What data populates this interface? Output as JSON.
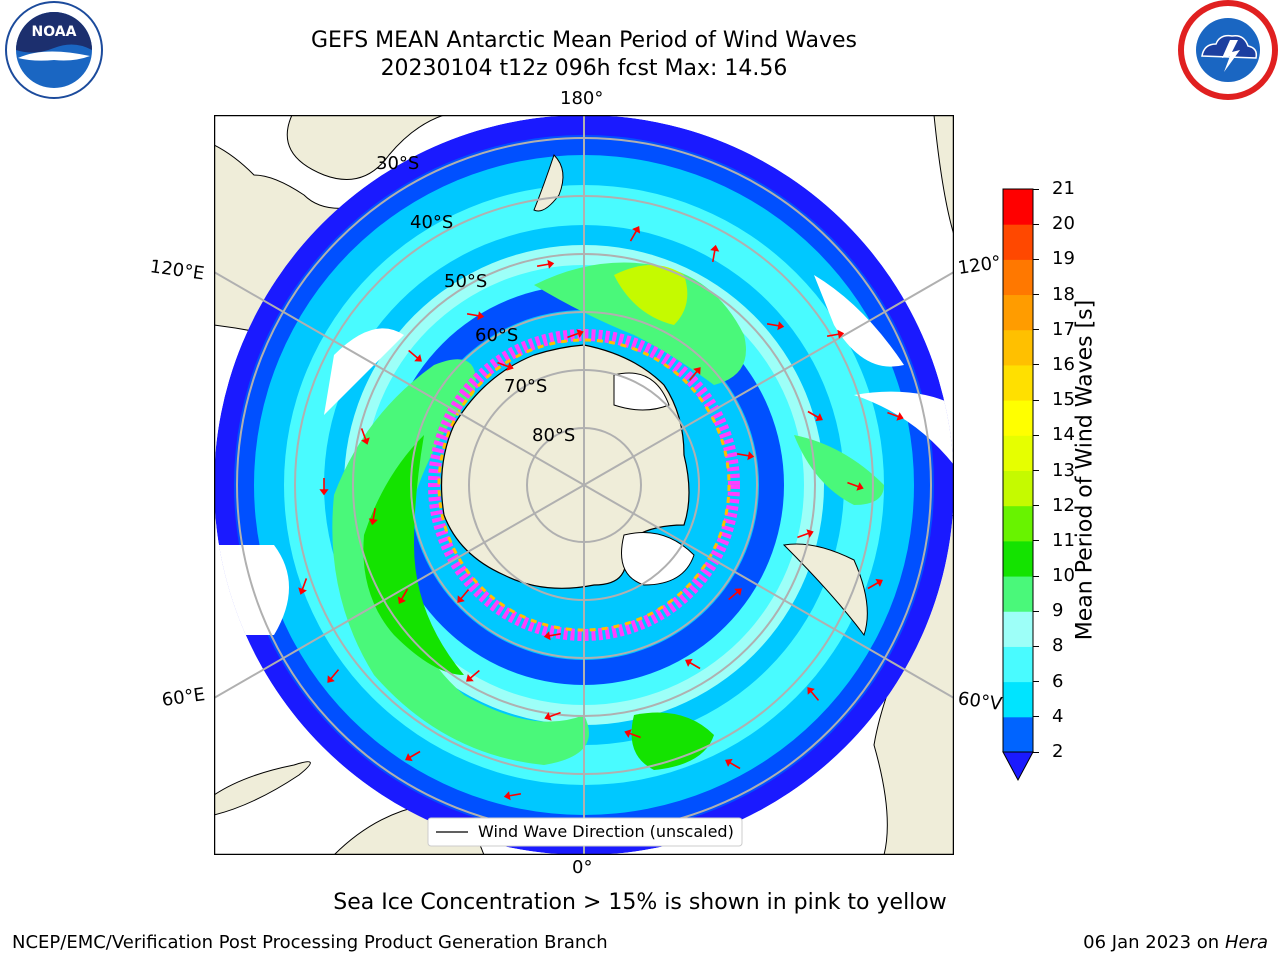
{
  "header": {
    "title_line1": "GEFS MEAN Antarctic Mean Period of Wind Waves",
    "title_line2": "20230104 t12z 096h fcst   Max: 14.56"
  },
  "logos": {
    "left_icon": "noaa-logo-icon",
    "left_text": "NOAA",
    "right_icon": "nws-logo-icon"
  },
  "map": {
    "longitude_labels": {
      "top": "180°",
      "bottom": "0°",
      "upper_left": "120°E",
      "upper_right": "120°",
      "lower_left": "60°E",
      "lower_right": "60°V"
    },
    "latitude_labels": [
      "30°S",
      "40°S",
      "50°S",
      "60°S",
      "70°S",
      "80°S"
    ],
    "legend_label": "Wind Wave Direction (unscaled)"
  },
  "colorbar": {
    "label": "Mean Period of Wind Waves [s]",
    "ticks": [
      "2",
      "4",
      "6",
      "8",
      "9",
      "10",
      "11",
      "12",
      "13",
      "14",
      "15",
      "16",
      "17",
      "18",
      "19",
      "20",
      "21"
    ],
    "colors": [
      "#0064ff",
      "#00e4ff",
      "#49fbff",
      "#9dfff8",
      "#4af87a",
      "#14e300",
      "#68f300",
      "#c5fa00",
      "#e6ff00",
      "#ffff00",
      "#ffe000",
      "#ffc000",
      "#ff9c00",
      "#ff7800",
      "#ff4800",
      "#ff0000"
    ],
    "under_color": "#1a1aff"
  },
  "notes": {
    "sea_ice": "Sea Ice Concentration > 15% is shown in pink to yellow"
  },
  "footer": {
    "left": "NCEP/EMC/Verification Post Processing Product Generation Branch",
    "right_date": "06 Jan 2023 on",
    "right_host": "Hera"
  }
}
